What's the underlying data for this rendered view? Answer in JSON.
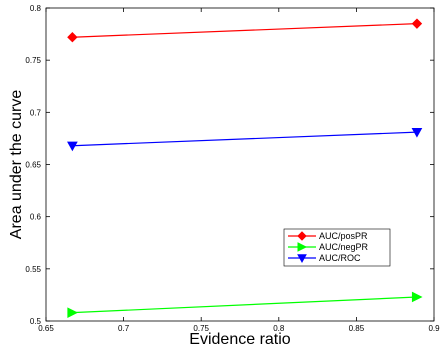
{
  "chart_data": {
    "type": "line",
    "title": "",
    "xlabel": "Evidence ratio",
    "ylabel": "Area under the curve",
    "xlim": [
      0.65,
      0.9
    ],
    "ylim": [
      0.5,
      0.8
    ],
    "xticks": [
      0.65,
      0.7,
      0.75,
      0.8,
      0.85,
      0.9
    ],
    "xtick_labels": [
      "0.65",
      "0.7",
      "0.75",
      "0.8",
      "0.85",
      "0.9"
    ],
    "yticks": [
      0.5,
      0.55,
      0.6,
      0.65,
      0.7,
      0.75,
      0.8
    ],
    "ytick_labels": [
      "0.5",
      "0.55",
      "0.6",
      "0.65",
      "0.7",
      "0.75",
      "0.8"
    ],
    "grid": false,
    "legend_position": "lower-right",
    "x": [
      0.667,
      0.889
    ],
    "series": [
      {
        "name": "AUC/posPR",
        "values": [
          0.772,
          0.785
        ],
        "color": "#ff0000",
        "marker": "diamond"
      },
      {
        "name": "AUC/negPR",
        "values": [
          0.508,
          0.523
        ],
        "color": "#00ff00",
        "marker": "triangle-right"
      },
      {
        "name": "AUC/ROC",
        "values": [
          0.668,
          0.681
        ],
        "color": "#0000ff",
        "marker": "triangle-down"
      }
    ]
  }
}
